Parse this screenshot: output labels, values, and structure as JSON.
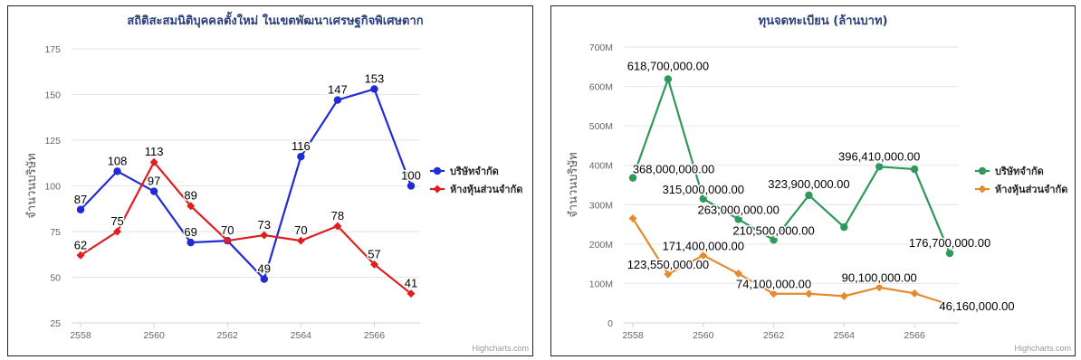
{
  "chart_data": [
    {
      "type": "line",
      "title": "สถิติสะสมนิติบุคคลตั้งใหม่ ในเขตพัฒนาเศรษฐกิจพิเศษตาก",
      "xlabel": "",
      "ylabel": "จำนวนบริษัท",
      "x": [
        2558,
        2559,
        2560,
        2561,
        2562,
        2563,
        2564,
        2565,
        2566,
        2567
      ],
      "x_ticks": [
        "2558",
        "2560",
        "2562",
        "2564",
        "2566"
      ],
      "y_ticks": [
        "25",
        "50",
        "75",
        "100",
        "125",
        "150",
        "175"
      ],
      "ylim": [
        25,
        175
      ],
      "grid": true,
      "legend_position": "right",
      "credit": "Highcharts.com",
      "series": [
        {
          "name": "บริษัทจำกัด",
          "color": "#1f2bd4",
          "marker": "circle",
          "values": [
            87,
            108,
            97,
            69,
            70,
            49,
            116,
            147,
            153,
            100
          ],
          "labels": [
            "87",
            "108",
            "97",
            "69",
            "70",
            "49",
            "116",
            "147",
            "153",
            "100"
          ]
        },
        {
          "name": "ห้างหุ้นส่วนจำกัด",
          "color": "#dd1f1f",
          "marker": "diamond",
          "values": [
            62,
            75,
            113,
            89,
            70,
            73,
            70,
            78,
            57,
            41
          ],
          "labels": [
            "62",
            "75",
            "113",
            "89",
            "70",
            "73",
            "70",
            "78",
            "57",
            "41"
          ]
        }
      ]
    },
    {
      "type": "line",
      "title": "ทุนจดทะเบียน (ล้านบาท)",
      "xlabel": "",
      "ylabel": "จำนวนบริษัท",
      "x": [
        2558,
        2559,
        2560,
        2561,
        2562,
        2563,
        2564,
        2565,
        2566,
        2567
      ],
      "x_ticks": [
        "2558",
        "2560",
        "2562",
        "2564",
        "2566"
      ],
      "y_ticks": [
        "0",
        "100M",
        "200M",
        "300M",
        "400M",
        "500M",
        "600M",
        "700M"
      ],
      "ylim": [
        0,
        700000000
      ],
      "grid": true,
      "legend_position": "right",
      "credit": "Highcharts.com",
      "series": [
        {
          "name": "บริษัทจำกัด",
          "color": "#2e9958",
          "marker": "circle",
          "values": [
            368000000,
            618700000,
            315000000,
            263000000,
            210500000,
            323900000,
            243000000,
            396410000,
            390000000,
            176700000
          ],
          "labels": [
            "368,000,000.00",
            "618,700,000.00",
            "315,000,000.00",
            "263,000,000.00",
            "210,500,000.00",
            "323,900,000.00",
            "",
            "396,410,000.00",
            "",
            "176,700,000.00"
          ]
        },
        {
          "name": "ห้างหุ้นส่วนจำกัด",
          "color": "#e58a2e",
          "marker": "diamond",
          "values": [
            265000000,
            123550000,
            171400000,
            125000000,
            74100000,
            74000000,
            68000000,
            90100000,
            75000000,
            46160000
          ],
          "labels": [
            "",
            "123,550,000.00",
            "171,400,000.00",
            "",
            "74,100,000.00",
            "",
            "",
            "90,100,000.00",
            "",
            "46,160,000.00"
          ]
        }
      ]
    }
  ]
}
